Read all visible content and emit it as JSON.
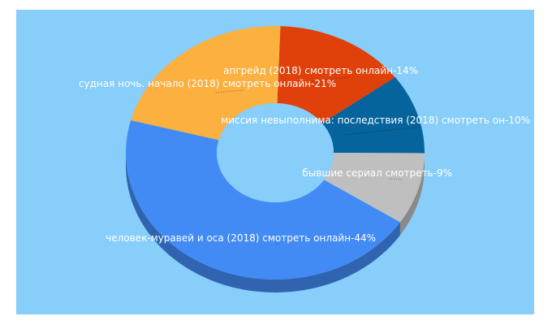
{
  "chart_data": {
    "type": "pie",
    "style": "3d-donut",
    "background": "#87cefa",
    "label_color": "#ffffff",
    "slices": [
      {
        "label": "апгрейд (2018) смотреть онлайн-14%",
        "value": 14,
        "color": "#e0400a"
      },
      {
        "label": "миссия невыполнима: последствия (2018) смотреть он-10%",
        "value": 10,
        "color": "#05649c"
      },
      {
        "label": "бывшие сериал смотреть-9%",
        "value": 9,
        "color": "#bfbfbf"
      },
      {
        "label": "человек-муравей и оса (2018) смотреть онлайн-44%",
        "value": 44,
        "color": "#428bf5"
      },
      {
        "label": "судная ночь. начало (2018) смотреть онлайн-21%",
        "value": 21,
        "color": "#fbb040"
      }
    ]
  }
}
